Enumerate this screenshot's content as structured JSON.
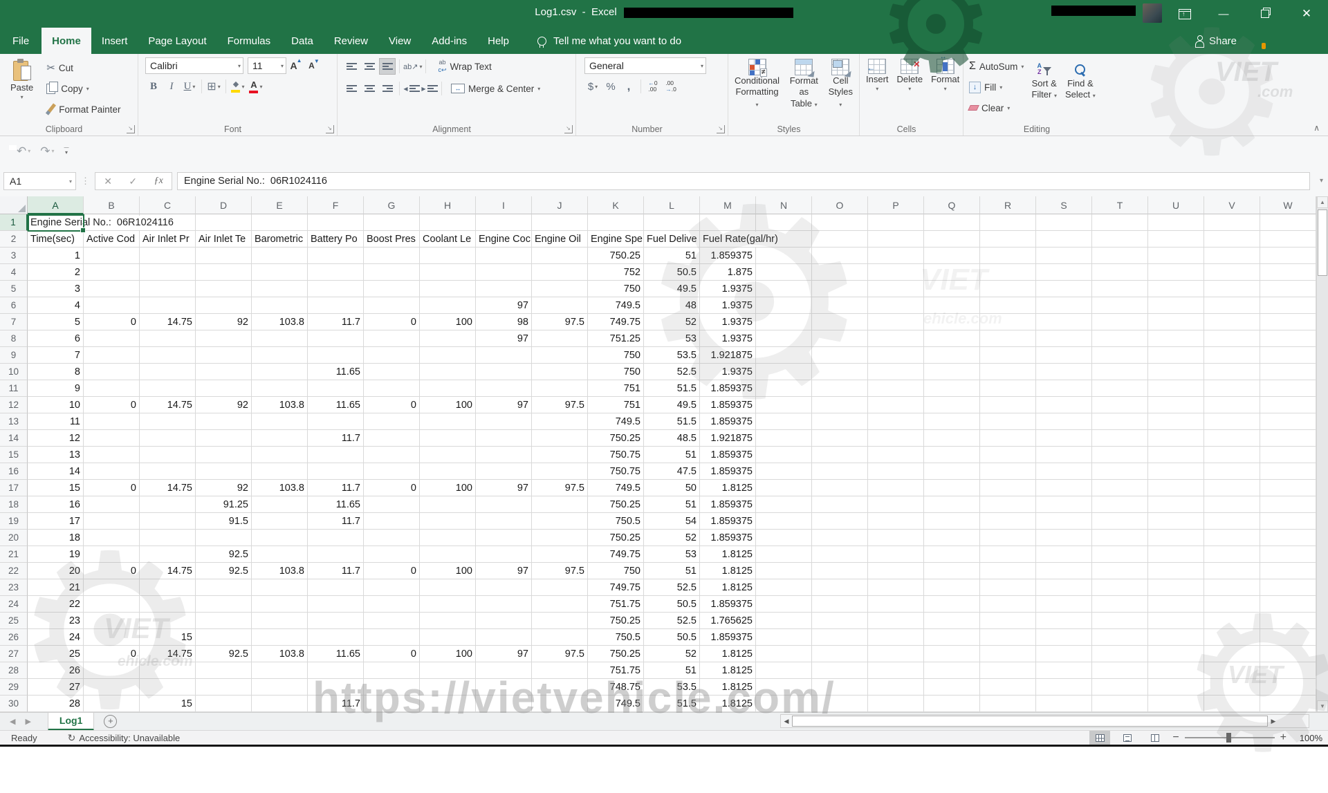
{
  "titlebar": {
    "title": "Log1.csv  -  Excel"
  },
  "tabs": {
    "file": "File",
    "items": [
      "Home",
      "Insert",
      "Page Layout",
      "Formulas",
      "Data",
      "Review",
      "View",
      "Add-ins",
      "Help"
    ],
    "active": "Home",
    "tellme": "Tell me what you want to do",
    "share": "Share"
  },
  "ribbon": {
    "clipboard": {
      "label": "Clipboard",
      "paste": "Paste",
      "cut": "Cut",
      "copy": "Copy",
      "format_painter": "Format Painter"
    },
    "font": {
      "label": "Font",
      "family": "Calibri",
      "size": "11"
    },
    "alignment": {
      "label": "Alignment",
      "wrap": "Wrap Text",
      "merge": "Merge & Center"
    },
    "number": {
      "label": "Number",
      "format": "General"
    },
    "styles": {
      "label": "Styles",
      "conditional1": "Conditional",
      "conditional2": "Formatting",
      "table1": "Format as",
      "table2": "Table",
      "cellstyles1": "Cell",
      "cellstyles2": "Styles"
    },
    "cells": {
      "label": "Cells",
      "insert": "Insert",
      "delete": "Delete",
      "format": "Format"
    },
    "editing": {
      "label": "Editing",
      "autosum": "AutoSum",
      "fill": "Fill",
      "clear": "Clear",
      "sort1": "Sort &",
      "sort2": "Filter",
      "find1": "Find &",
      "find2": "Select"
    }
  },
  "formula_bar": {
    "name_box": "A1",
    "value": "Engine Serial No.:  06R1024116"
  },
  "sheet": {
    "columns": [
      "A",
      "B",
      "C",
      "D",
      "E",
      "F",
      "G",
      "H",
      "I",
      "J",
      "K",
      "L",
      "M",
      "N",
      "O",
      "P",
      "Q",
      "R",
      "S",
      "T",
      "U",
      "V",
      "W"
    ],
    "a1": "Engine Serial No.:  06R1024116",
    "headers": [
      "Time(sec)",
      "Active Cod",
      "Air Inlet Pr",
      "Air Inlet Te",
      "Barometric",
      "Battery Po",
      "Boost Pres",
      "Coolant Le",
      "Engine Coc",
      "Engine Oil",
      "Engine Spe",
      "Fuel Delive",
      "Fuel Rate(gal/hr)"
    ],
    "rows": [
      [
        "1",
        "",
        "",
        "",
        "",
        "",
        "",
        "",
        "",
        "",
        "750.25",
        "51",
        "1.859375"
      ],
      [
        "2",
        "",
        "",
        "",
        "",
        "",
        "",
        "",
        "",
        "",
        "752",
        "50.5",
        "1.875"
      ],
      [
        "3",
        "",
        "",
        "",
        "",
        "",
        "",
        "",
        "",
        "",
        "750",
        "49.5",
        "1.9375"
      ],
      [
        "4",
        "",
        "",
        "",
        "",
        "",
        "",
        "",
        "97",
        "",
        "749.5",
        "48",
        "1.9375"
      ],
      [
        "5",
        "0",
        "14.75",
        "92",
        "103.8",
        "11.7",
        "0",
        "100",
        "98",
        "97.5",
        "749.75",
        "52",
        "1.9375"
      ],
      [
        "6",
        "",
        "",
        "",
        "",
        "",
        "",
        "",
        "97",
        "",
        "751.25",
        "53",
        "1.9375"
      ],
      [
        "7",
        "",
        "",
        "",
        "",
        "",
        "",
        "",
        "",
        "",
        "750",
        "53.5",
        "1.921875"
      ],
      [
        "8",
        "",
        "",
        "",
        "",
        "11.65",
        "",
        "",
        "",
        "",
        "750",
        "52.5",
        "1.9375"
      ],
      [
        "9",
        "",
        "",
        "",
        "",
        "",
        "",
        "",
        "",
        "",
        "751",
        "51.5",
        "1.859375"
      ],
      [
        "10",
        "0",
        "14.75",
        "92",
        "103.8",
        "11.65",
        "0",
        "100",
        "97",
        "97.5",
        "751",
        "49.5",
        "1.859375"
      ],
      [
        "11",
        "",
        "",
        "",
        "",
        "",
        "",
        "",
        "",
        "",
        "749.5",
        "51.5",
        "1.859375"
      ],
      [
        "12",
        "",
        "",
        "",
        "",
        "11.7",
        "",
        "",
        "",
        "",
        "750.25",
        "48.5",
        "1.921875"
      ],
      [
        "13",
        "",
        "",
        "",
        "",
        "",
        "",
        "",
        "",
        "",
        "750.75",
        "51",
        "1.859375"
      ],
      [
        "14",
        "",
        "",
        "",
        "",
        "",
        "",
        "",
        "",
        "",
        "750.75",
        "47.5",
        "1.859375"
      ],
      [
        "15",
        "0",
        "14.75",
        "92",
        "103.8",
        "11.7",
        "0",
        "100",
        "97",
        "97.5",
        "749.5",
        "50",
        "1.8125"
      ],
      [
        "16",
        "",
        "",
        "91.25",
        "",
        "11.65",
        "",
        "",
        "",
        "",
        "750.25",
        "51",
        "1.859375"
      ],
      [
        "17",
        "",
        "",
        "91.5",
        "",
        "11.7",
        "",
        "",
        "",
        "",
        "750.5",
        "54",
        "1.859375"
      ],
      [
        "18",
        "",
        "",
        "",
        "",
        "",
        "",
        "",
        "",
        "",
        "750.25",
        "52",
        "1.859375"
      ],
      [
        "19",
        "",
        "",
        "92.5",
        "",
        "",
        "",
        "",
        "",
        "",
        "749.75",
        "53",
        "1.8125"
      ],
      [
        "20",
        "0",
        "14.75",
        "92.5",
        "103.8",
        "11.7",
        "0",
        "100",
        "97",
        "97.5",
        "750",
        "51",
        "1.8125"
      ],
      [
        "21",
        "",
        "",
        "",
        "",
        "",
        "",
        "",
        "",
        "",
        "749.75",
        "52.5",
        "1.8125"
      ],
      [
        "22",
        "",
        "",
        "",
        "",
        "",
        "",
        "",
        "",
        "",
        "751.75",
        "50.5",
        "1.859375"
      ],
      [
        "23",
        "",
        "",
        "",
        "",
        "",
        "",
        "",
        "",
        "",
        "750.25",
        "52.5",
        "1.765625"
      ],
      [
        "24",
        "",
        "15",
        "",
        "",
        "",
        "",
        "",
        "",
        "",
        "750.5",
        "50.5",
        "1.859375"
      ],
      [
        "25",
        "0",
        "14.75",
        "92.5",
        "103.8",
        "11.65",
        "0",
        "100",
        "97",
        "97.5",
        "750.25",
        "52",
        "1.8125"
      ],
      [
        "26",
        "",
        "",
        "",
        "",
        "",
        "",
        "",
        "",
        "",
        "751.75",
        "51",
        "1.8125"
      ],
      [
        "27",
        "",
        "",
        "",
        "",
        "",
        "",
        "",
        "",
        "",
        "748.75",
        "53.5",
        "1.8125"
      ],
      [
        "28",
        "",
        "15",
        "",
        "",
        "11.7",
        "",
        "",
        "",
        "",
        "749.5",
        "51.5",
        "1.8125"
      ]
    ],
    "tab": "Log1"
  },
  "status": {
    "ready": "Ready",
    "accessibility": "Accessibility: Unavailable",
    "zoom": "100%"
  },
  "watermark": {
    "url": "https://vietvehicle.com/",
    "brand_top": "VIET",
    "brand_dot": ".com",
    "brand_left1": "VIET",
    "brand_left2": "ehicle.com"
  }
}
